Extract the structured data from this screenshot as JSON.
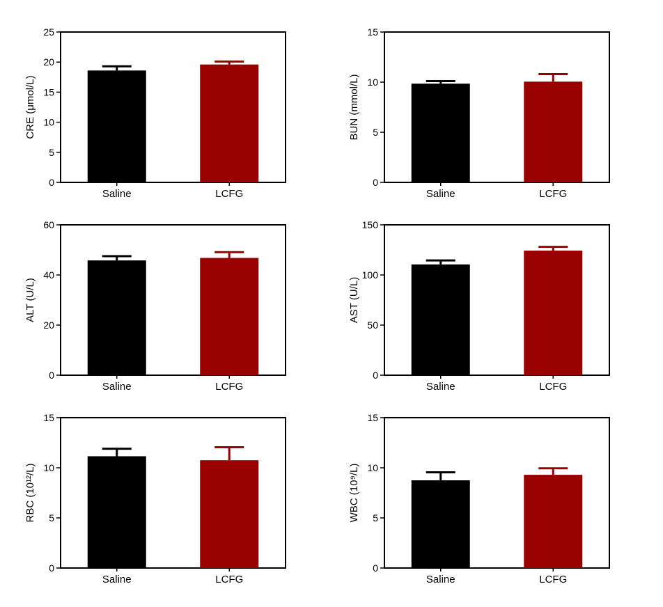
{
  "colors": {
    "saline": "#000000",
    "lcfg": "#990000",
    "axis": "#000000"
  },
  "chart_data": [
    {
      "type": "bar",
      "id": "cre",
      "ylabel": "CRE (μmol/L)",
      "categories": [
        "Saline",
        "LCFG"
      ],
      "values": [
        18.6,
        19.6
      ],
      "errors": [
        0.7,
        0.5
      ],
      "ylim": [
        0,
        25
      ],
      "yticks": [
        0,
        5,
        10,
        15,
        20,
        25
      ],
      "ytick_labels": [
        "0",
        "5",
        "10",
        "15",
        "20",
        "25"
      ]
    },
    {
      "type": "bar",
      "id": "bun",
      "ylabel": "BUN (mmol/L)",
      "categories": [
        "Saline",
        "LCFG"
      ],
      "values": [
        9.85,
        10.05
      ],
      "errors": [
        0.25,
        0.75
      ],
      "ylim": [
        0,
        15
      ],
      "yticks": [
        0,
        5,
        10,
        15
      ],
      "ytick_labels": [
        "0",
        "5",
        "10",
        "15"
      ]
    },
    {
      "type": "bar",
      "id": "alt",
      "ylabel": "ALT (U/L)",
      "categories": [
        "Saline",
        "LCFG"
      ],
      "values": [
        45.8,
        46.8
      ],
      "errors": [
        1.7,
        2.3
      ],
      "ylim": [
        0,
        60
      ],
      "yticks": [
        0,
        20,
        40,
        60
      ],
      "ytick_labels": [
        "0",
        "20",
        "40",
        "60"
      ]
    },
    {
      "type": "bar",
      "id": "ast",
      "ylabel": "AST (U/L)",
      "categories": [
        "Saline",
        "LCFG"
      ],
      "values": [
        110.5,
        124.3
      ],
      "errors": [
        4.0,
        3.7
      ],
      "ylim": [
        0,
        150
      ],
      "yticks": [
        0,
        50,
        100,
        150
      ],
      "ytick_labels": [
        "0",
        "50",
        "100",
        "150"
      ]
    },
    {
      "type": "bar",
      "id": "rbc",
      "ylabel": "RBC (10¹²/L)",
      "categories": [
        "Saline",
        "LCFG"
      ],
      "values": [
        11.15,
        10.75
      ],
      "errors": [
        0.75,
        1.3
      ],
      "ylim": [
        0,
        15
      ],
      "yticks": [
        0,
        5,
        10,
        15
      ],
      "ytick_labels": [
        "0",
        "5",
        "10",
        "15"
      ]
    },
    {
      "type": "bar",
      "id": "wbc",
      "ylabel": "WBC (10⁹/L)",
      "categories": [
        "Saline",
        "LCFG"
      ],
      "values": [
        8.75,
        9.3
      ],
      "errors": [
        0.8,
        0.65
      ],
      "ylim": [
        0,
        15
      ],
      "yticks": [
        0,
        5,
        10,
        15
      ],
      "ytick_labels": [
        "0",
        "5",
        "10",
        "15"
      ]
    }
  ]
}
